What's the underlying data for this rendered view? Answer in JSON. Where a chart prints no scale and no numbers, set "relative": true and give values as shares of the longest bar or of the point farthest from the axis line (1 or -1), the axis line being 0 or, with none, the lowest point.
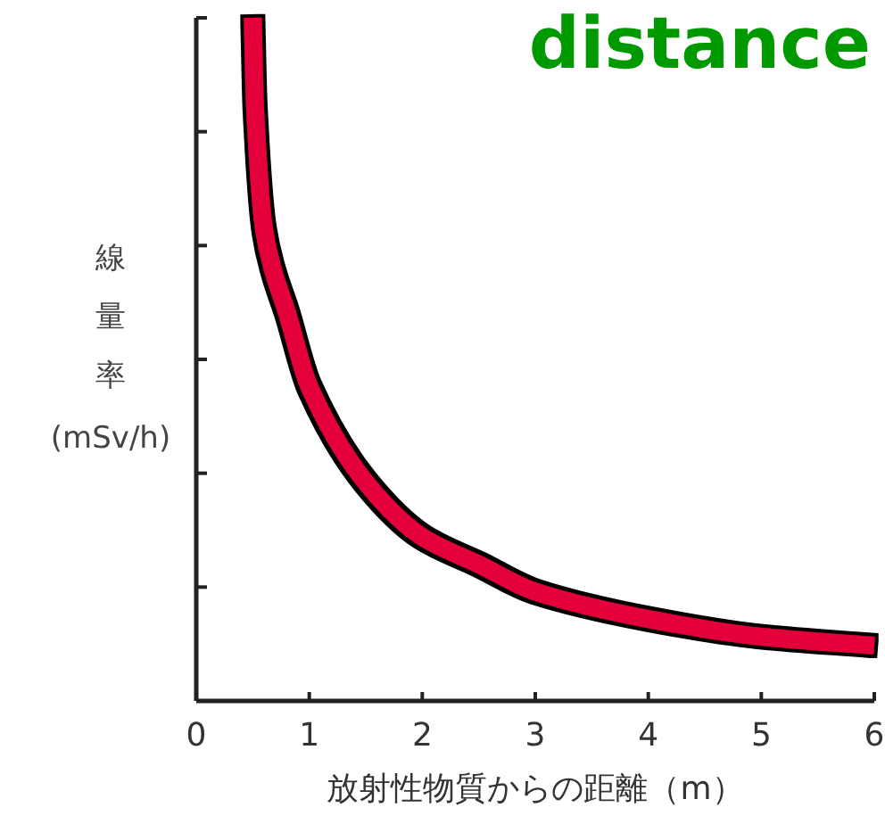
{
  "chart_data": {
    "type": "line",
    "title": "distance",
    "xlabel": "放射性物質からの距離（m）",
    "ylabel": "線量率(mSv/h)",
    "relative": true,
    "xlim": [
      0,
      6
    ],
    "xticks": [
      0,
      1,
      2,
      3,
      4,
      5,
      6
    ],
    "grid": false,
    "marker": "none",
    "line_style": "solid",
    "series": [
      {
        "color": "#e4003a",
        "x": [
          0.5,
          0.52,
          0.6,
          0.68,
          0.8,
          1.0,
          1.5,
          2.0,
          2.5,
          3.0,
          4.0,
          5.0,
          6.0
        ],
        "values": [
          1.0,
          0.87,
          0.69,
          0.63,
          0.57,
          0.46,
          0.32,
          0.24,
          0.2,
          0.16,
          0.12,
          0.094,
          0.081
        ]
      }
    ]
  }
}
